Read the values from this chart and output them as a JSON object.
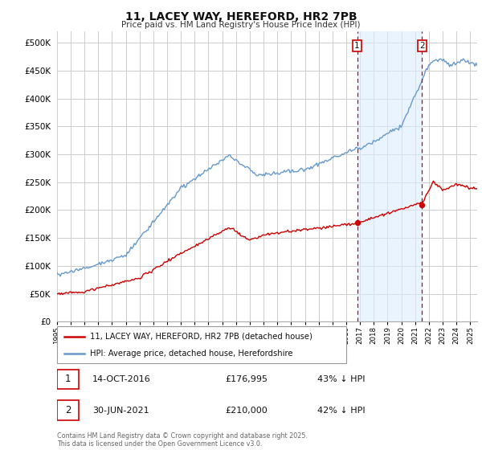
{
  "title": "11, LACEY WAY, HEREFORD, HR2 7PB",
  "subtitle": "Price paid vs. HM Land Registry's House Price Index (HPI)",
  "legend_line1": "11, LACEY WAY, HEREFORD, HR2 7PB (detached house)",
  "legend_line2": "HPI: Average price, detached house, Herefordshire",
  "annotation1_label": "1",
  "annotation1_date": "14-OCT-2016",
  "annotation1_price": "£176,995",
  "annotation1_hpi": "43% ↓ HPI",
  "annotation1_year": 2016.79,
  "annotation1_red_value": 176995,
  "annotation2_label": "2",
  "annotation2_date": "30-JUN-2021",
  "annotation2_price": "£210,000",
  "annotation2_hpi": "42% ↓ HPI",
  "annotation2_year": 2021.5,
  "annotation2_red_value": 210000,
  "ylim": [
    0,
    520000
  ],
  "yticks": [
    0,
    50000,
    100000,
    150000,
    200000,
    250000,
    300000,
    350000,
    400000,
    450000,
    500000
  ],
  "color_red": "#cc0000",
  "color_blue": "#6699cc",
  "color_shade": "#ddeeff",
  "background_color": "#ffffff",
  "grid_color": "#cccccc",
  "footer_text": "Contains HM Land Registry data © Crown copyright and database right 2025.\nThis data is licensed under the Open Government Licence v3.0."
}
